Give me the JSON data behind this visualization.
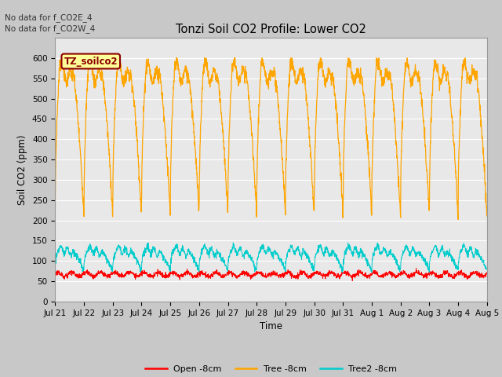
{
  "title": "Tonzi Soil CO2 Profile: Lower CO2",
  "ylabel": "Soil CO2 (ppm)",
  "xlabel": "Time",
  "no_data_text": [
    "No data for f_CO2E_4",
    "No data for f_CO2W_4"
  ],
  "annotation_text": "TZ_soilco2",
  "annotation_color": "#8B0000",
  "annotation_bg": "#FFFF99",
  "annotation_border": "#8B0000",
  "ylim": [
    0,
    650
  ],
  "yticks": [
    0,
    50,
    100,
    150,
    200,
    250,
    300,
    350,
    400,
    450,
    500,
    550,
    600
  ],
  "xtick_labels": [
    "Jul 21",
    "Jul 22",
    "Jul 23",
    "Jul 24",
    "Jul 25",
    "Jul 26",
    "Jul 27",
    "Jul 28",
    "Jul 29",
    "Jul 30",
    "Jul 31",
    "Aug 1",
    "Aug 2",
    "Aug 3",
    "Aug 4",
    "Aug 5"
  ],
  "legend_labels": [
    "Open -8cm",
    "Tree -8cm",
    "Tree2 -8cm"
  ],
  "legend_colors": [
    "#FF0000",
    "#FFA500",
    "#00CCCC"
  ],
  "fig_bg_color": "#C8C8C8",
  "plot_bg_color": "#E8E8E8",
  "grid_color": "#FFFFFF",
  "tree_peak": 575,
  "tree_dip": 220,
  "open_base": 67,
  "tree2_peak": 130,
  "tree2_dip": 82
}
